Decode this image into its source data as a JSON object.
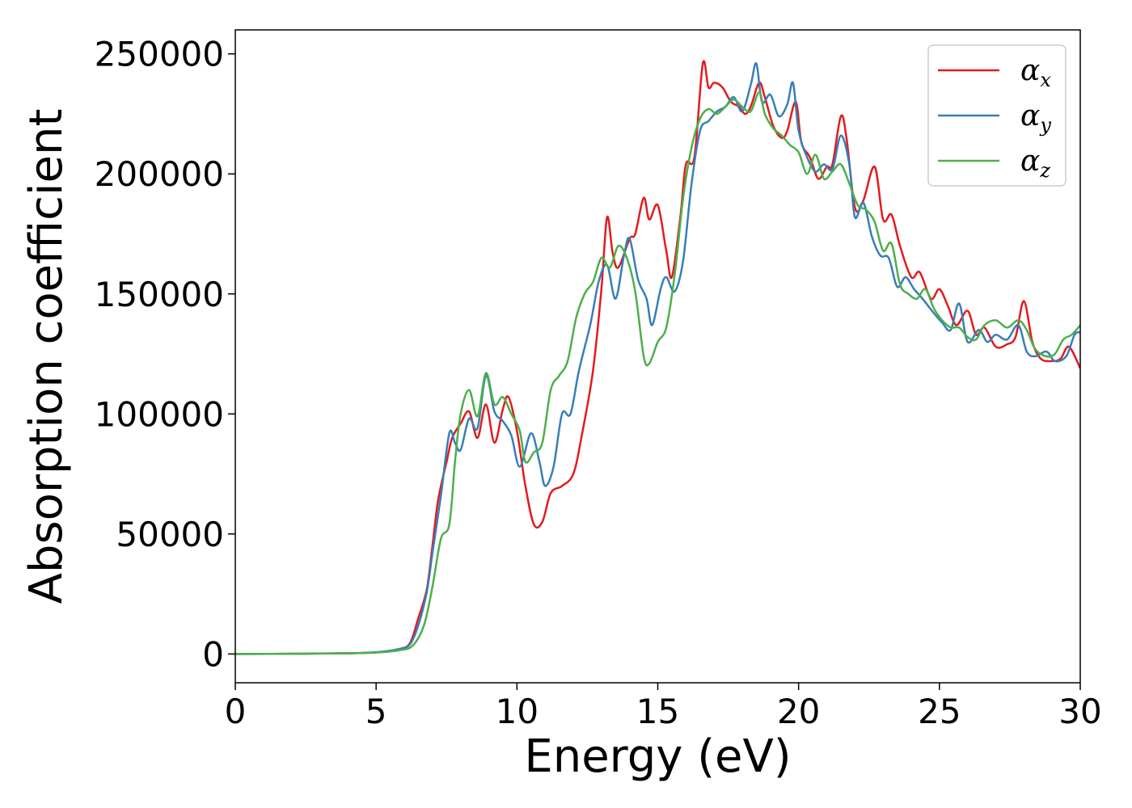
{
  "chart_data": {
    "type": "line",
    "title": "",
    "xlabel": "Energy (eV)",
    "ylabel": "Absorption coefficient",
    "xlim": [
      0,
      30
    ],
    "ylim": [
      -12000,
      260000
    ],
    "xticks": [
      0,
      5,
      10,
      15,
      20,
      25,
      30
    ],
    "yticks": [
      0,
      50000,
      100000,
      150000,
      200000,
      250000
    ],
    "xtick_labels": [
      "0",
      "5",
      "10",
      "15",
      "20",
      "25",
      "30"
    ],
    "ytick_labels": [
      "0",
      "50000",
      "100000",
      "150000",
      "200000",
      "250000"
    ],
    "grid": false,
    "legend_position": "top-right",
    "series": [
      {
        "name": "α",
        "subscript": "x",
        "color": "#e41a1c",
        "points": [
          [
            0,
            0
          ],
          [
            2,
            100
          ],
          [
            4,
            300
          ],
          [
            5,
            700
          ],
          [
            5.8,
            2000
          ],
          [
            6.2,
            4500
          ],
          [
            6.5,
            15000
          ],
          [
            6.8,
            27000
          ],
          [
            7.0,
            45000
          ],
          [
            7.2,
            64000
          ],
          [
            7.5,
            80000
          ],
          [
            7.7,
            90000
          ],
          [
            8.0,
            96000
          ],
          [
            8.3,
            101000
          ],
          [
            8.6,
            90000
          ],
          [
            8.9,
            104000
          ],
          [
            9.2,
            88000
          ],
          [
            9.5,
            102000
          ],
          [
            9.7,
            107000
          ],
          [
            10.0,
            93000
          ],
          [
            10.3,
            70000
          ],
          [
            10.6,
            54000
          ],
          [
            10.9,
            55000
          ],
          [
            11.2,
            67000
          ],
          [
            11.6,
            70000
          ],
          [
            12.0,
            75000
          ],
          [
            12.3,
            91000
          ],
          [
            12.7,
            118000
          ],
          [
            13.0,
            152000
          ],
          [
            13.2,
            182000
          ],
          [
            13.4,
            167000
          ],
          [
            13.6,
            161000
          ],
          [
            14.0,
            173000
          ],
          [
            14.2,
            175000
          ],
          [
            14.5,
            190000
          ],
          [
            14.7,
            181000
          ],
          [
            15.0,
            187000
          ],
          [
            15.3,
            168000
          ],
          [
            15.5,
            157000
          ],
          [
            15.8,
            182000
          ],
          [
            16.0,
            204000
          ],
          [
            16.3,
            207000
          ],
          [
            16.6,
            246000
          ],
          [
            16.8,
            236000
          ],
          [
            17.0,
            238000
          ],
          [
            17.3,
            236000
          ],
          [
            17.6,
            230000
          ],
          [
            17.9,
            228000
          ],
          [
            18.1,
            225000
          ],
          [
            18.3,
            228000
          ],
          [
            18.6,
            238000
          ],
          [
            18.8,
            232000
          ],
          [
            19.1,
            220000
          ],
          [
            19.4,
            215000
          ],
          [
            19.6,
            218000
          ],
          [
            19.9,
            230000
          ],
          [
            20.1,
            213000
          ],
          [
            20.4,
            207000
          ],
          [
            20.7,
            198000
          ],
          [
            21.0,
            203000
          ],
          [
            21.2,
            204000
          ],
          [
            21.5,
            224000
          ],
          [
            21.7,
            215000
          ],
          [
            22.0,
            186000
          ],
          [
            22.3,
            189000
          ],
          [
            22.7,
            203000
          ],
          [
            23.0,
            181000
          ],
          [
            23.3,
            183000
          ],
          [
            23.6,
            170000
          ],
          [
            24.0,
            157000
          ],
          [
            24.3,
            159000
          ],
          [
            24.7,
            148000
          ],
          [
            25.0,
            152000
          ],
          [
            25.3,
            145000
          ],
          [
            25.6,
            137000
          ],
          [
            26.0,
            143000
          ],
          [
            26.3,
            133000
          ],
          [
            26.6,
            136000
          ],
          [
            27.0,
            128000
          ],
          [
            27.4,
            129000
          ],
          [
            27.7,
            132000
          ],
          [
            28.0,
            147000
          ],
          [
            28.3,
            130000
          ],
          [
            28.6,
            123000
          ],
          [
            29.0,
            122000
          ],
          [
            29.3,
            123000
          ],
          [
            29.6,
            128000
          ],
          [
            30.0,
            119000
          ]
        ]
      },
      {
        "name": "α",
        "subscript": "y",
        "color": "#377eb8",
        "points": [
          [
            0,
            0
          ],
          [
            2,
            100
          ],
          [
            4,
            300
          ],
          [
            5,
            700
          ],
          [
            5.8,
            2000
          ],
          [
            6.2,
            4000
          ],
          [
            6.5,
            12000
          ],
          [
            6.8,
            26000
          ],
          [
            7.0,
            42000
          ],
          [
            7.3,
            66000
          ],
          [
            7.6,
            92000
          ],
          [
            7.8,
            88000
          ],
          [
            8.0,
            85000
          ],
          [
            8.3,
            98000
          ],
          [
            8.6,
            94000
          ],
          [
            8.9,
            116000
          ],
          [
            9.2,
            101000
          ],
          [
            9.5,
            97000
          ],
          [
            9.8,
            91000
          ],
          [
            10.1,
            78000
          ],
          [
            10.5,
            92000
          ],
          [
            10.8,
            80000
          ],
          [
            11.0,
            70000
          ],
          [
            11.3,
            78000
          ],
          [
            11.6,
            100000
          ],
          [
            11.9,
            100000
          ],
          [
            12.2,
            118000
          ],
          [
            12.6,
            137000
          ],
          [
            12.9,
            155000
          ],
          [
            13.2,
            162000
          ],
          [
            13.5,
            148000
          ],
          [
            13.8,
            166000
          ],
          [
            14.0,
            173000
          ],
          [
            14.3,
            156000
          ],
          [
            14.6,
            148000
          ],
          [
            14.8,
            137000
          ],
          [
            15.1,
            152000
          ],
          [
            15.3,
            157000
          ],
          [
            15.6,
            151000
          ],
          [
            15.9,
            164000
          ],
          [
            16.2,
            196000
          ],
          [
            16.5,
            218000
          ],
          [
            16.8,
            222000
          ],
          [
            17.1,
            226000
          ],
          [
            17.4,
            228000
          ],
          [
            17.7,
            232000
          ],
          [
            18.0,
            226000
          ],
          [
            18.3,
            237000
          ],
          [
            18.5,
            246000
          ],
          [
            18.7,
            230000
          ],
          [
            19.0,
            233000
          ],
          [
            19.3,
            224000
          ],
          [
            19.6,
            229000
          ],
          [
            19.8,
            238000
          ],
          [
            20.0,
            218000
          ],
          [
            20.3,
            207000
          ],
          [
            20.6,
            201000
          ],
          [
            20.9,
            204000
          ],
          [
            21.2,
            202000
          ],
          [
            21.5,
            216000
          ],
          [
            21.8,
            204000
          ],
          [
            22.0,
            182000
          ],
          [
            22.3,
            188000
          ],
          [
            22.6,
            174000
          ],
          [
            22.9,
            166000
          ],
          [
            23.2,
            165000
          ],
          [
            23.5,
            153000
          ],
          [
            23.8,
            157000
          ],
          [
            24.1,
            152000
          ],
          [
            24.4,
            148000
          ],
          [
            24.8,
            142000
          ],
          [
            25.1,
            138000
          ],
          [
            25.4,
            135000
          ],
          [
            25.7,
            146000
          ],
          [
            26.0,
            130000
          ],
          [
            26.4,
            135000
          ],
          [
            26.7,
            130000
          ],
          [
            27.0,
            133000
          ],
          [
            27.4,
            131000
          ],
          [
            27.8,
            137000
          ],
          [
            28.1,
            126000
          ],
          [
            28.4,
            124000
          ],
          [
            28.8,
            126000
          ],
          [
            29.1,
            122000
          ],
          [
            29.5,
            124000
          ],
          [
            29.8,
            133000
          ],
          [
            30.0,
            134000
          ]
        ]
      },
      {
        "name": "α",
        "subscript": "z",
        "color": "#4daf4a",
        "points": [
          [
            0,
            0
          ],
          [
            2,
            100
          ],
          [
            4,
            300
          ],
          [
            5,
            600
          ],
          [
            5.8,
            1500
          ],
          [
            6.3,
            3500
          ],
          [
            6.7,
            12000
          ],
          [
            7.0,
            28000
          ],
          [
            7.3,
            48000
          ],
          [
            7.6,
            54000
          ],
          [
            7.8,
            80000
          ],
          [
            8.0,
            100000
          ],
          [
            8.3,
            110000
          ],
          [
            8.6,
            99000
          ],
          [
            8.9,
            117000
          ],
          [
            9.2,
            104000
          ],
          [
            9.5,
            107000
          ],
          [
            9.8,
            100000
          ],
          [
            10.1,
            93000
          ],
          [
            10.3,
            80000
          ],
          [
            10.6,
            84000
          ],
          [
            10.9,
            88000
          ],
          [
            11.2,
            110000
          ],
          [
            11.5,
            116000
          ],
          [
            11.8,
            122000
          ],
          [
            12.1,
            140000
          ],
          [
            12.4,
            150000
          ],
          [
            12.7,
            155000
          ],
          [
            13.0,
            165000
          ],
          [
            13.3,
            161000
          ],
          [
            13.6,
            170000
          ],
          [
            13.9,
            165000
          ],
          [
            14.2,
            151000
          ],
          [
            14.5,
            124000
          ],
          [
            14.7,
            121000
          ],
          [
            15.0,
            130000
          ],
          [
            15.3,
            136000
          ],
          [
            15.6,
            158000
          ],
          [
            15.9,
            190000
          ],
          [
            16.2,
            211000
          ],
          [
            16.5,
            223000
          ],
          [
            16.8,
            227000
          ],
          [
            17.1,
            225000
          ],
          [
            17.4,
            228000
          ],
          [
            17.7,
            231000
          ],
          [
            18.0,
            228000
          ],
          [
            18.3,
            226000
          ],
          [
            18.6,
            234000
          ],
          [
            18.8,
            225000
          ],
          [
            19.1,
            219000
          ],
          [
            19.4,
            216000
          ],
          [
            19.7,
            212000
          ],
          [
            20.0,
            209000
          ],
          [
            20.3,
            200000
          ],
          [
            20.6,
            208000
          ],
          [
            20.9,
            198000
          ],
          [
            21.2,
            201000
          ],
          [
            21.5,
            204000
          ],
          [
            21.8,
            196000
          ],
          [
            22.1,
            187000
          ],
          [
            22.4,
            185000
          ],
          [
            22.7,
            180000
          ],
          [
            23.0,
            168000
          ],
          [
            23.3,
            171000
          ],
          [
            23.6,
            154000
          ],
          [
            23.9,
            150000
          ],
          [
            24.2,
            148000
          ],
          [
            24.5,
            152000
          ],
          [
            24.8,
            144000
          ],
          [
            25.1,
            139000
          ],
          [
            25.4,
            136000
          ],
          [
            25.7,
            136000
          ],
          [
            26.0,
            132000
          ],
          [
            26.3,
            131000
          ],
          [
            26.6,
            137000
          ],
          [
            27.0,
            139000
          ],
          [
            27.4,
            136000
          ],
          [
            27.8,
            139000
          ],
          [
            28.1,
            135000
          ],
          [
            28.4,
            127000
          ],
          [
            28.8,
            124000
          ],
          [
            29.1,
            125000
          ],
          [
            29.4,
            131000
          ],
          [
            29.7,
            133000
          ],
          [
            30.0,
            137000
          ]
        ]
      }
    ]
  }
}
